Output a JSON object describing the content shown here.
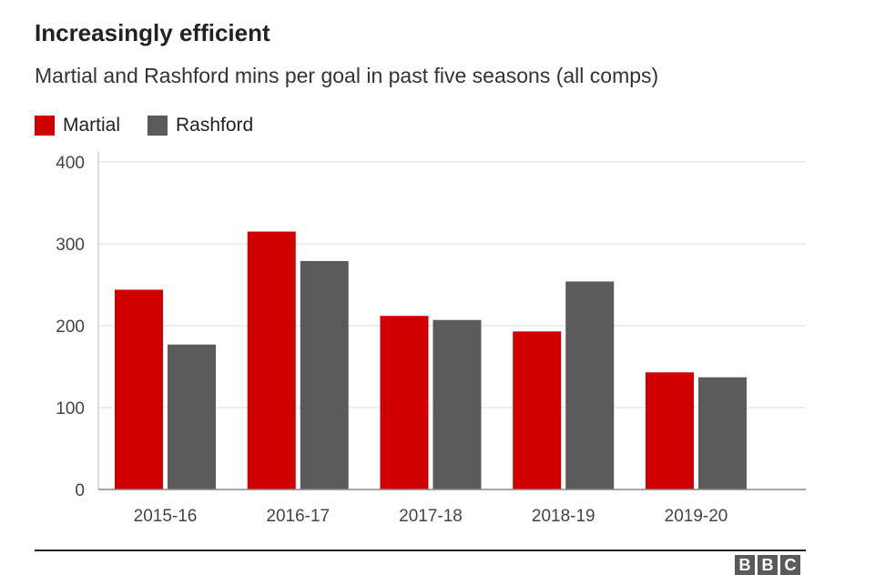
{
  "title": "Increasingly efficient",
  "subtitle": "Martial and Rashford mins per goal in past five seasons (all comps)",
  "legend": [
    {
      "name": "Martial",
      "color": "#d10000"
    },
    {
      "name": "Rashford",
      "color": "#5a5a5a"
    }
  ],
  "logo": {
    "letters": [
      "B",
      "B",
      "C"
    ]
  },
  "chart_data": {
    "type": "bar",
    "title": "Increasingly efficient",
    "subtitle": "Martial and Rashford mins per goal in past five seasons (all comps)",
    "categories": [
      "2015-16",
      "2016-17",
      "2017-18",
      "2018-19",
      "2019-20"
    ],
    "series": [
      {
        "name": "Martial",
        "color": "#d10000",
        "values": [
          244,
          315,
          212,
          193,
          143
        ]
      },
      {
        "name": "Rashford",
        "color": "#5a5a5a",
        "values": [
          177,
          279,
          207,
          254,
          137
        ]
      }
    ],
    "ylim": [
      0,
      400
    ],
    "yticks": [
      0,
      100,
      200,
      300,
      400
    ],
    "xlabel": "",
    "ylabel": "",
    "grid": true,
    "legend_position": "top-left"
  }
}
